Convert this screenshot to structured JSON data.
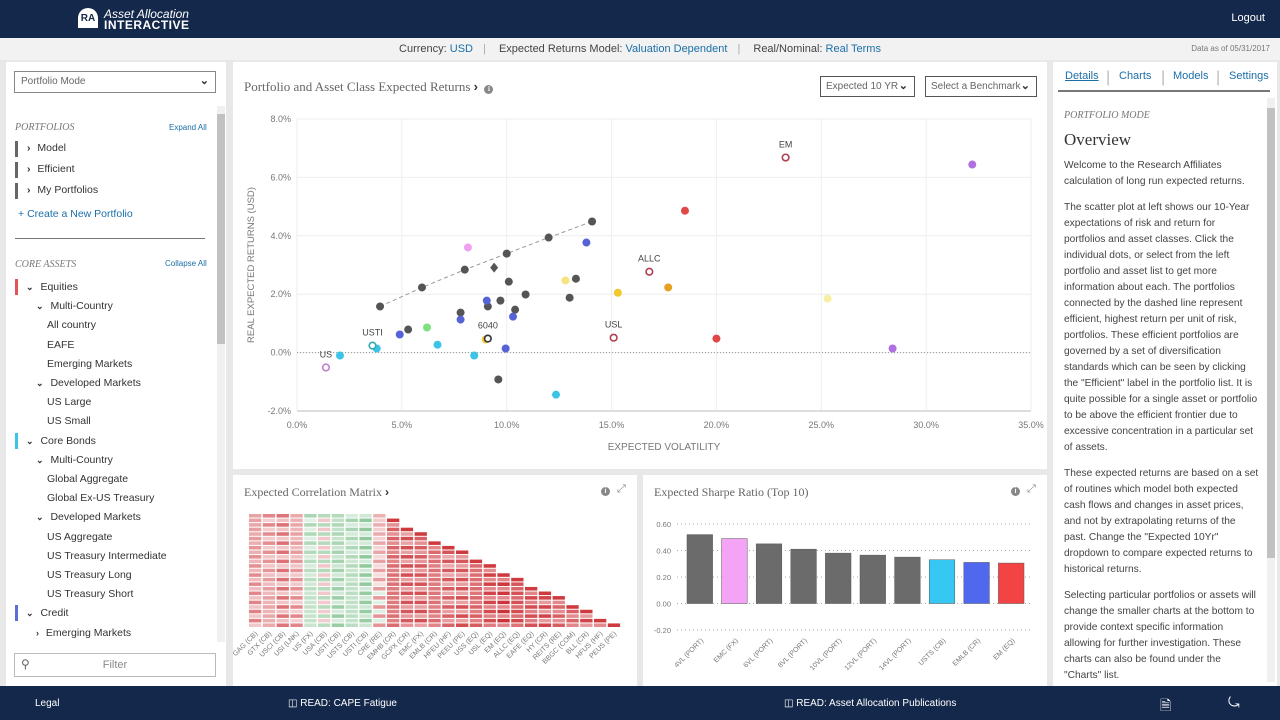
{
  "header": {
    "brand_line1": "Asset Allocation",
    "brand_line2": "INTERACTIVE",
    "logout": "Logout"
  },
  "settings_bar": {
    "currency_label": "Currency:",
    "currency": "USD",
    "model_label": "Expected Returns Model:",
    "model": "Valuation Dependent",
    "realnom_label": "Real/Nominal:",
    "realnom": "Real Terms",
    "data_as_of": "Data as of 05/31/2017"
  },
  "sidebar": {
    "mode_select": "Portfolio Mode",
    "portfolios_heading": "PORTFOLIOS",
    "expand_all": "Expand All",
    "portfolios": [
      "Model",
      "Efficient",
      "My Portfolios"
    ],
    "create_portfolio": "Create a New Portfolio",
    "core_heading": "CORE ASSETS",
    "collapse_all": "Collapse All",
    "tree": [
      {
        "label": "Equities",
        "level": 0,
        "chevron": "down",
        "color": "#e05656"
      },
      {
        "label": "Multi-Country",
        "level": 1,
        "chevron": "down"
      },
      {
        "label": "All country",
        "level": 2
      },
      {
        "label": "EAFE",
        "level": 2
      },
      {
        "label": "Emerging Markets",
        "level": 2
      },
      {
        "label": "Developed Markets",
        "level": 1,
        "chevron": "down"
      },
      {
        "label": "US Large",
        "level": 2
      },
      {
        "label": "US Small",
        "level": 2
      },
      {
        "label": "Core Bonds",
        "level": 0,
        "chevron": "down",
        "color": "#3cc3e8"
      },
      {
        "label": "Multi-Country",
        "level": 1,
        "chevron": "down"
      },
      {
        "label": "Global Aggregate",
        "level": 2
      },
      {
        "label": "Global Ex-US Treasury",
        "level": 2
      },
      {
        "label": "Developed Markets",
        "level": 1,
        "chevron": "down"
      },
      {
        "label": "US Aggregate",
        "level": 2
      },
      {
        "label": "US Treasury Intermediate",
        "level": 2
      },
      {
        "label": "US Treasury Long",
        "level": 2
      },
      {
        "label": "US Treasury Short",
        "level": 2
      },
      {
        "label": "Credit",
        "level": 0,
        "chevron": "down",
        "color": "#5b6fd6"
      },
      {
        "label": "Emerging Markets",
        "level": 1,
        "chevron": "right"
      }
    ],
    "filter_placeholder": "Filter"
  },
  "main": {
    "title": "Portfolio and Asset Class Expected Returns",
    "horizon_select": "Expected 10 YR",
    "benchmark_select": "Select a Benchmark"
  },
  "chart_data": [
    {
      "type": "scatter",
      "xlabel": "EXPECTED VOLATILITY",
      "ylabel": "REAL EXPECTED RETURNS (USD)",
      "xlim": [
        0,
        35
      ],
      "ylim": [
        -2,
        8
      ],
      "xticks": [
        "0.0%",
        "5.0%",
        "10.0%",
        "15.0%",
        "20.0%",
        "25.0%",
        "30.0%",
        "35.0%"
      ],
      "yticks": [
        "8.0%",
        "6.0%",
        "4.0%",
        "2.0%",
        "0.0%",
        "-2.0%"
      ],
      "grid": true,
      "frontier": [
        [
          3.96,
          1.58
        ],
        [
          5.96,
          2.23
        ],
        [
          8.0,
          2.84
        ],
        [
          10.0,
          3.39
        ],
        [
          12.0,
          3.94
        ],
        [
          14.07,
          4.49
        ]
      ],
      "points": [
        {
          "x": 5.3,
          "y": 0.79,
          "color": "#555555"
        },
        {
          "x": 7.8,
          "y": 1.37,
          "color": "#555555"
        },
        {
          "x": 9.1,
          "y": 1.58,
          "color": "#555555"
        },
        {
          "x": 9.7,
          "y": 1.78,
          "color": "#555555"
        },
        {
          "x": 10.1,
          "y": 2.43,
          "color": "#555555"
        },
        {
          "x": 10.4,
          "y": 1.47,
          "color": "#555555"
        },
        {
          "x": 10.9,
          "y": 1.99,
          "color": "#555555"
        },
        {
          "x": 13.0,
          "y": 1.88,
          "color": "#555555"
        },
        {
          "x": 13.3,
          "y": 2.53,
          "color": "#555555"
        },
        {
          "x": 9.6,
          "y": -0.92,
          "color": "#555555"
        },
        {
          "x": 9.4,
          "y": 2.91,
          "color": "#555555",
          "shape": "diamond"
        },
        {
          "x": 4.9,
          "y": 0.62,
          "color": "#5563d6"
        },
        {
          "x": 7.8,
          "y": 1.13,
          "color": "#5563d6"
        },
        {
          "x": 9.05,
          "y": 1.78,
          "color": "#5563d6"
        },
        {
          "x": 10.3,
          "y": 1.23,
          "color": "#5563d6"
        },
        {
          "x": 9.95,
          "y": 0.14,
          "color": "#5563d6"
        },
        {
          "x": 13.8,
          "y": 3.77,
          "color": "#5563d6"
        },
        {
          "x": 2.05,
          "y": -0.1,
          "color": "#3cc3e8"
        },
        {
          "x": 3.8,
          "y": 0.14,
          "color": "#3cc3e8"
        },
        {
          "x": 6.7,
          "y": 0.27,
          "color": "#3cc3e8"
        },
        {
          "x": 8.45,
          "y": -0.1,
          "color": "#3cc3e8"
        },
        {
          "x": 12.35,
          "y": -1.44,
          "color": "#3cc3e8"
        },
        {
          "x": 8.15,
          "y": 3.6,
          "color": "#f0a0f0"
        },
        {
          "x": 6.2,
          "y": 0.86,
          "color": "#7ee07e"
        },
        {
          "x": 9.0,
          "y": 0.45,
          "color": "#f2c830"
        },
        {
          "x": 12.8,
          "y": 2.47,
          "color": "#f5e480"
        },
        {
          "x": 15.3,
          "y": 2.05,
          "color": "#f2c830"
        },
        {
          "x": 25.3,
          "y": 1.85,
          "color": "#f7f0a0"
        },
        {
          "x": 17.7,
          "y": 2.23,
          "color": "#e8a020"
        },
        {
          "x": 18.5,
          "y": 4.86,
          "color": "#e04848"
        },
        {
          "x": 20.0,
          "y": 0.48,
          "color": "#e04848"
        },
        {
          "x": 32.2,
          "y": 6.44,
          "color": "#b070e0"
        },
        {
          "x": 28.4,
          "y": 0.14,
          "color": "#b070e0"
        },
        {
          "x": 1.38,
          "y": -0.51,
          "color": "#c080d0",
          "hollow": true,
          "label": "US"
        },
        {
          "x": 3.6,
          "y": 0.24,
          "color": "#30a8b0",
          "hollow": true,
          "label": "USTI"
        },
        {
          "x": 9.1,
          "y": 0.48,
          "color": "#333333",
          "hollow": true,
          "label": "6040"
        },
        {
          "x": 15.1,
          "y": 0.51,
          "color": "#b04050",
          "hollow": true,
          "label": "USL"
        },
        {
          "x": 16.8,
          "y": 2.77,
          "color": "#b04050",
          "hollow": true,
          "label": "ALLC"
        },
        {
          "x": 23.3,
          "y": 6.68,
          "color": "#b04050",
          "hollow": true,
          "label": "EM"
        }
      ]
    },
    {
      "type": "heatmap",
      "title": "Expected Correlation Matrix",
      "labels": [
        "GAG (CB)",
        "GTX (CB)",
        "USCI (CB)",
        "USI (LNK)",
        "US (FX)",
        "USA (CB)",
        "USTI (CB)",
        "USTS (CB)",
        "USTI (CB)",
        "CRE (RE)",
        "EMHB (CR)",
        "GCPX (CR)",
        "EMC (FX)",
        "EMLB (CR)",
        "HFEU (HF)",
        "PEEU (PE)",
        "USS (EQ)",
        "USL (EQ)",
        "EM (EQ)",
        "ALLC (EQ)",
        "EAFE (EQ)",
        "HY (CR)",
        "REITS (RE)",
        "BBGC (COM)",
        "BLL (CR)",
        "HFUS (HF)",
        "PEUS (PE)"
      ],
      "avg_correlation": [
        0.35,
        0.3,
        0.4,
        0.3,
        -0.2,
        -0.1,
        -0.3,
        -0.25,
        -0.35,
        0.2,
        0.6,
        0.6,
        0.6,
        0.6,
        0.55,
        0.6,
        0.65,
        0.7,
        0.75,
        0.75,
        0.7,
        0.65,
        0.6,
        0.6,
        0.65,
        0.65,
        0.7
      ]
    },
    {
      "type": "bar",
      "title": "Expected Sharpe Ratio (Top 10)",
      "ylim": [
        -0.2,
        0.6
      ],
      "yticks": [
        "0.60",
        "0.40",
        "0.20",
        "0.00",
        "-0.20"
      ],
      "categories": [
        "4VL (PORT)",
        "EMC (FX)",
        "6VL (PORT)",
        "8VL (PORT)",
        "10VL (PORT)",
        "12VL (PORT)",
        "14VL (PORT)",
        "USTS (CB)",
        "EMLB (CR)",
        "EM (EQ)"
      ],
      "values": [
        0.52,
        0.49,
        0.45,
        0.41,
        0.38,
        0.365,
        0.35,
        0.33,
        0.31,
        0.305
      ],
      "colors": [
        "#6b6b6b",
        "#f5a3f5",
        "#6b6b6b",
        "#6b6b6b",
        "#6b6b6b",
        "#6b6b6b",
        "#6b6b6b",
        "#36c8f2",
        "#5068ee",
        "#f24444"
      ]
    }
  ],
  "right": {
    "tabs": [
      "Details",
      "Charts",
      "Models",
      "Settings"
    ],
    "active_tab": "Details",
    "kicker": "PORTFOLIO MODE",
    "title": "Overview",
    "paragraphs": [
      "Welcome to the Research Affiliates calculation of long run expected returns.",
      "The scatter plot at left shows our 10-Year expectations of risk and return for portfolios and asset classes. Click the individual dots, or select from the left portfolio and asset list to get more information about each. The portfolios connected by the dashed line represent efficient, highest return per unit of risk, portfolios. These efficient portfolios are governed by a set of diversification standards which can be seen by clicking the \"Efficient\" label in the portfolio list. It is quite possible for a single asset or portfolio to be above the efficient frontier due to excessive concentration in a particular set of assets.",
      "These expected returns are based on a set of routines which model both expected cash flows and changes in asset prices, and not by extrapolating returns of the past. Change the \"Expected 10Yr\" dropdown to compare expected returns to historical returns.",
      "Selecting particular portfolios or assets will change the smaller charts at the bottom to provide context specific information allowing for further investigation. These charts can also be found under the \"Charts\" list."
    ]
  },
  "footer": {
    "legal": "Legal",
    "read1": "READ: CAPE Fatigue",
    "read2": "READ: Asset Allocation Publications"
  }
}
